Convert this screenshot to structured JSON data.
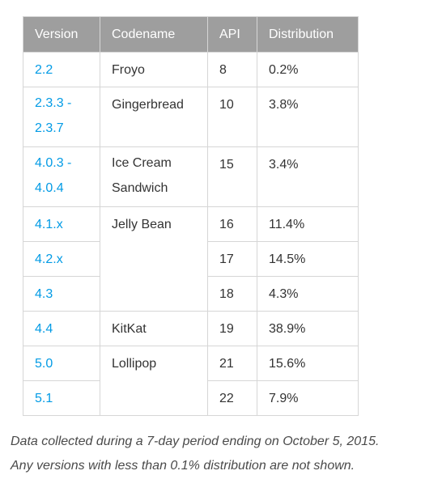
{
  "table": {
    "headers": {
      "version": "Version",
      "codename": "Codename",
      "api": "API",
      "distribution": "Distribution"
    },
    "rows": [
      {
        "version": "2.2",
        "codename": "Froyo",
        "api": "8",
        "distribution": "0.2%"
      },
      {
        "version_line1": "2.3.3 -",
        "version_line2": "2.3.7",
        "codename": "Gingerbread",
        "api": "10",
        "distribution": "3.8%"
      },
      {
        "version_line1": "4.0.3 -",
        "version_line2": "4.0.4",
        "codename_line1": "Ice Cream",
        "codename_line2": "Sandwich",
        "api": "15",
        "distribution": "3.4%"
      },
      {
        "version": "4.1.x",
        "codename": "Jelly Bean",
        "api": "16",
        "distribution": "11.4%"
      },
      {
        "version": "4.2.x",
        "api": "17",
        "distribution": "14.5%"
      },
      {
        "version": "4.3",
        "api": "18",
        "distribution": "4.3%"
      },
      {
        "version": "4.4",
        "codename": "KitKat",
        "api": "19",
        "distribution": "38.9%"
      },
      {
        "version": "5.0",
        "codename": "Lollipop",
        "api": "21",
        "distribution": "15.6%"
      },
      {
        "version": "5.1",
        "api": "22",
        "distribution": "7.9%"
      }
    ]
  },
  "footnote": {
    "line1": "Data collected during a 7-day period ending on October 5, 2015.",
    "line2": "Any versions with less than 0.1% distribution are not shown."
  },
  "colors": {
    "header_bg": "#9e9e9e",
    "link": "#039be5",
    "border": "#d6d6d6"
  }
}
